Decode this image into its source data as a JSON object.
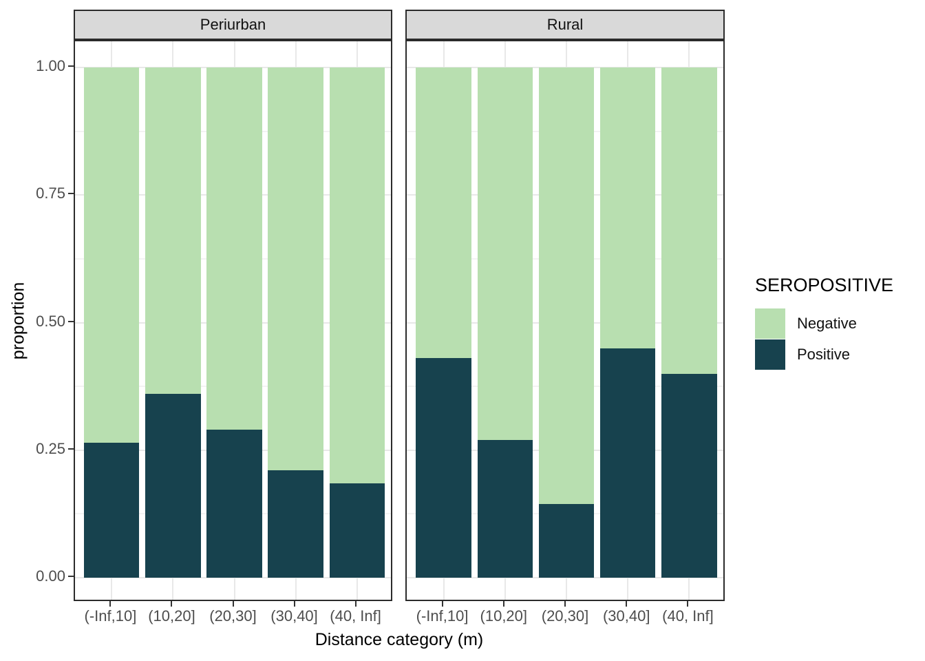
{
  "chart_data": {
    "type": "bar",
    "stacking": "fill",
    "title": "",
    "xlabel": "Distance category (m)",
    "ylabel": "proportion",
    "ylim": [
      0,
      1
    ],
    "y_ticks": [
      0,
      0.25,
      0.5,
      0.75,
      1
    ],
    "y_tick_labels": [
      "0.00",
      "0.25",
      "0.50",
      "0.75",
      "1.00"
    ],
    "y_minor_ticks": [
      0.125,
      0.375,
      0.625,
      0.875
    ],
    "categories": [
      "(-Inf,10]",
      "(10,20]",
      "(20,30]",
      "(30,40]",
      "(40, Inf]"
    ],
    "grid": {
      "major": true,
      "minor": true
    },
    "legend": {
      "title": "SEROPOSITIVE",
      "position": "right",
      "items": [
        {
          "label": "Negative",
          "color": "#b8dfb0"
        },
        {
          "label": "Positive",
          "color": "#17424e"
        }
      ]
    },
    "facets": [
      {
        "label": "Periurban",
        "series": [
          {
            "name": "Negative",
            "values": [
              0.735,
              0.64,
              0.71,
              0.79,
              0.815
            ]
          },
          {
            "name": "Positive",
            "values": [
              0.265,
              0.36,
              0.29,
              0.21,
              0.185
            ]
          }
        ]
      },
      {
        "label": "Rural",
        "series": [
          {
            "name": "Negative",
            "values": [
              0.57,
              0.73,
              0.855,
              0.55,
              0.6
            ]
          },
          {
            "name": "Positive",
            "values": [
              0.43,
              0.27,
              0.145,
              0.45,
              0.4
            ]
          }
        ]
      }
    ]
  }
}
